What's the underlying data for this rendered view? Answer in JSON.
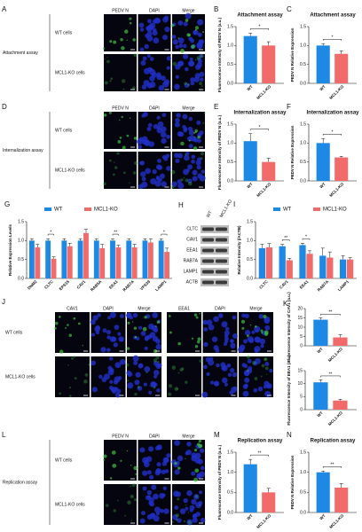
{
  "microscopy": [
    {
      "letter": "A",
      "group": "Attachment assay",
      "columns": [
        "PEDV N",
        "DAPI",
        "Merge"
      ],
      "rows": [
        "WT cells",
        "MCL1-KO cells"
      ]
    },
    {
      "letter": "D",
      "group": "Internalization assay",
      "columns": [
        "PEDV N",
        "DAPI",
        "Merge"
      ],
      "rows": [
        "WT cells",
        "MCL1-KO cells"
      ]
    },
    {
      "letter": "J",
      "columns": [
        "CAV1",
        "DAPI",
        "Merge",
        "EEA1",
        "DAPI",
        "Merge"
      ],
      "rows": [
        "WT cells",
        "MCL1-KO cells"
      ]
    },
    {
      "letter": "L",
      "group": "Replication assay",
      "columns": [
        "PEDV N",
        "DAPI",
        "Merge"
      ],
      "rows": [
        "WT cells",
        "MCL1-KO cells"
      ]
    }
  ],
  "blot": {
    "letter": "H",
    "lanes": [
      "WT",
      "MCL1-KO"
    ],
    "bands": [
      "CLTC",
      "CAV1",
      "EEA1",
      "RAB7A",
      "LAMP1",
      "ACTB"
    ]
  },
  "chart_data": [
    {
      "letter": "B",
      "type": "bar",
      "title": "Attachment assay",
      "y_label": "Fluorescence Intensity of PEDV N (a.u.)",
      "categories": [
        "WT",
        "MCL1-KO"
      ],
      "values": [
        1.25,
        1.0
      ],
      "errors": [
        0.08,
        0.1
      ],
      "colors": [
        "#1e88e5",
        "#f26b6b"
      ],
      "ylim": [
        0,
        1.5
      ],
      "yticks": [
        {
          "value": 0,
          "label": "0.0"
        },
        0.5,
        {
          "value": 1,
          "label": "1.0"
        },
        1.5
      ],
      "significance": "*"
    },
    {
      "letter": "C",
      "type": "bar",
      "title": "Attachment assay",
      "y_label": "PEDV N Relative Expression",
      "categories": [
        "WT",
        "MCL1-KO"
      ],
      "values": [
        1.0,
        0.78
      ],
      "errors": [
        0.05,
        0.08
      ],
      "colors": [
        "#1e88e5",
        "#f26b6b"
      ],
      "ylim": [
        0,
        1.5
      ],
      "yticks": [
        {
          "value": 0,
          "label": "0.0"
        },
        0.5,
        {
          "value": 1,
          "label": "1.0"
        },
        1.5
      ],
      "significance": "*"
    },
    {
      "letter": "E",
      "type": "bar",
      "title": "Internalization assay",
      "y_label": "Fluorescence Intensity of PEDV N (a.u.)",
      "categories": [
        "WT",
        "MCL1-KO"
      ],
      "values": [
        1.05,
        0.5
      ],
      "errors": [
        0.2,
        0.1
      ],
      "colors": [
        "#1e88e5",
        "#f26b6b"
      ],
      "ylim": [
        0,
        1.5
      ],
      "yticks": [
        {
          "value": 0,
          "label": "0.0"
        },
        0.5,
        {
          "value": 1,
          "label": "1.0"
        },
        1.5
      ],
      "significance": "*"
    },
    {
      "letter": "F",
      "type": "bar",
      "title": "Internalization assay",
      "y_label": "PEDV N Relative Expression",
      "categories": [
        "WT",
        "MCL1-KO"
      ],
      "values": [
        1.0,
        0.62
      ],
      "errors": [
        0.12,
        0.03
      ],
      "colors": [
        "#1e88e5",
        "#f26b6b"
      ],
      "ylim": [
        0,
        1.5
      ],
      "yticks": [
        {
          "value": 0,
          "label": "0.0"
        },
        0.5,
        {
          "value": 1,
          "label": "1.0"
        },
        1.5
      ],
      "significance": "*"
    },
    {
      "letter": "G",
      "type": "grouped_bar",
      "y_label": "Relative Expression Levels",
      "categories": [
        "DNM2",
        "CLTC",
        "EPS15",
        "CAV1",
        "RAB5A",
        "EEA1",
        "RAB7A",
        "VPS39",
        "LAMP1"
      ],
      "series": [
        {
          "name": "WT",
          "color": "#1e88e5",
          "values": [
            1.0,
            1.0,
            1.0,
            1.0,
            1.0,
            1.0,
            1.0,
            1.0,
            1.0
          ],
          "errors": [
            0.05,
            0.05,
            0.05,
            0.05,
            0.05,
            0.05,
            0.05,
            0.05,
            0.05
          ]
        },
        {
          "name": "MCL1-KO",
          "color": "#f26b6b",
          "values": [
            0.82,
            0.52,
            0.85,
            1.2,
            0.8,
            0.82,
            0.82,
            0.95,
            0.7
          ],
          "errors": [
            0.08,
            0.05,
            0.08,
            0.1,
            0.1,
            0.06,
            0.08,
            0.1,
            0.1
          ]
        }
      ],
      "ylim": [
        0,
        1.5
      ],
      "yticks": [
        {
          "value": 0,
          "label": "0.0"
        },
        0.5,
        {
          "value": 1,
          "label": "1.0"
        },
        1.5
      ],
      "significance": [
        null,
        "*",
        null,
        null,
        null,
        "**",
        null,
        null,
        "*"
      ]
    },
    {
      "letter": "I",
      "type": "grouped_bar",
      "y_label": "Relative Intensity (/ACTB)",
      "categories": [
        "CLTC",
        "CAV1",
        "EEA1",
        "RAB7A",
        "LAMP1"
      ],
      "series": [
        {
          "name": "WT",
          "color": "#1e88e5",
          "values": [
            0.8,
            0.85,
            0.88,
            0.6,
            0.5
          ],
          "errors": [
            0.1,
            0.05,
            0.05,
            0.2,
            0.1
          ]
        },
        {
          "name": "MCL1-KO",
          "color": "#f26b6b",
          "values": [
            0.82,
            0.48,
            0.65,
            0.55,
            0.5
          ],
          "errors": [
            0.1,
            0.05,
            0.08,
            0.15,
            0.05
          ]
        }
      ],
      "ylim": [
        0,
        1.5
      ],
      "yticks": [
        {
          "value": 0,
          "label": "0.0"
        },
        0.5,
        {
          "value": 1,
          "label": "1.0"
        },
        1.5
      ],
      "significance": [
        null,
        "**",
        "*",
        null,
        null
      ]
    },
    {
      "letter": "K",
      "type": "bar",
      "y_label": "Fluorescence Intensity of CAV1 (a.u.)",
      "categories": [
        "WT",
        "MCL1-KO"
      ],
      "values": [
        14,
        4.5
      ],
      "errors": [
        1,
        1.5
      ],
      "colors": [
        "#1e88e5",
        "#f26b6b"
      ],
      "ylim": [
        0,
        20
      ],
      "yticks": [
        0,
        5,
        10,
        15,
        20
      ],
      "significance": "**"
    },
    {
      "type": "bar",
      "y_label": "Fluorescence Intensity of EEA1 (a.u.)",
      "categories": [
        "WT",
        "MCL1-KO"
      ],
      "values": [
        10.5,
        3.5
      ],
      "errors": [
        1,
        0.5
      ],
      "colors": [
        "#1e88e5",
        "#f26b6b"
      ],
      "ylim": [
        0,
        15
      ],
      "yticks": [
        0,
        5,
        10,
        15
      ],
      "significance": "**"
    },
    {
      "letter": "M",
      "type": "bar",
      "title": "Replication assay",
      "y_label": "Fluorescence Intensity of PEDV N (a.u.)",
      "categories": [
        "WT",
        "MCL1-KO"
      ],
      "values": [
        1.2,
        0.5
      ],
      "errors": [
        0.12,
        0.1
      ],
      "colors": [
        "#1e88e5",
        "#f26b6b"
      ],
      "ylim": [
        0,
        1.5
      ],
      "yticks": [
        {
          "value": 0,
          "label": "0.0"
        },
        0.5,
        {
          "value": 1,
          "label": "1.0"
        },
        1.5
      ],
      "significance": "**"
    },
    {
      "letter": "N",
      "type": "bar",
      "title": "Replication assay",
      "y_label": "PEDV N Relative Expression",
      "categories": [
        "WT",
        "MCL1-KO"
      ],
      "values": [
        1.0,
        0.62
      ],
      "errors": [
        0.03,
        0.1
      ],
      "colors": [
        "#1e88e5",
        "#f26b6b"
      ],
      "ylim": [
        0,
        1.5
      ],
      "yticks": [
        {
          "value": 0,
          "label": "0.0"
        },
        0.5,
        {
          "value": 1,
          "label": "1.0"
        },
        1.5
      ],
      "significance": "**"
    }
  ]
}
